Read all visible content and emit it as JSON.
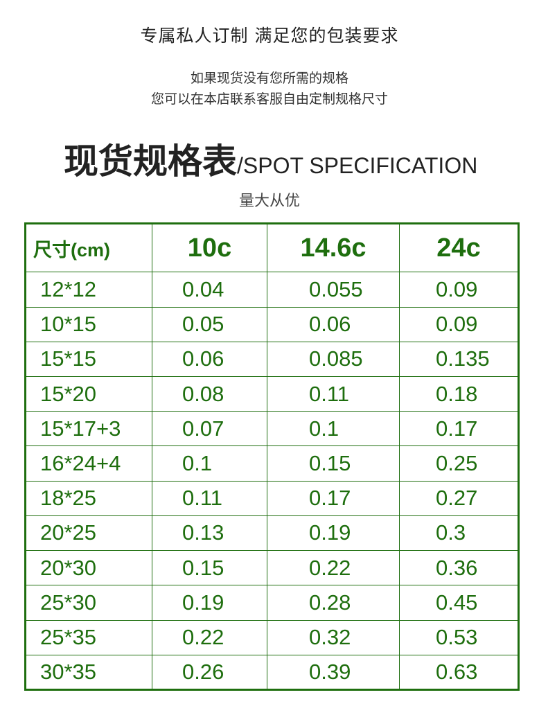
{
  "header": {
    "tagline": "专属私人订制  满足您的包装要求",
    "note_line1": "如果现货没有您所需的规格",
    "note_line2": "您可以在本店联系客服自由定制规格尺寸",
    "title_cn": "现货规格表",
    "title_en": "/SPOT SPECIFICATION",
    "subtitle": "量大从优"
  },
  "table": {
    "columns": [
      "尺寸(cm)",
      "10c",
      "14.6c",
      "24c"
    ],
    "rows": [
      [
        "12*12",
        "0.04",
        "0.055",
        "0.09"
      ],
      [
        "10*15",
        "0.05",
        "0.06",
        "0.09"
      ],
      [
        "15*15",
        "0.06",
        "0.085",
        "0.135"
      ],
      [
        "15*20",
        "0.08",
        "0.11",
        "0.18"
      ],
      [
        "15*17+3",
        "0.07",
        "0.1",
        "0.17"
      ],
      [
        "16*24+4",
        "0.1",
        "0.15",
        "0.25"
      ],
      [
        "18*25",
        "0.11",
        "0.17",
        "0.27"
      ],
      [
        "20*25",
        "0.13",
        "0.19",
        "0.3"
      ],
      [
        "20*30",
        "0.15",
        "0.22",
        "0.36"
      ],
      [
        "25*30",
        "0.19",
        "0.28",
        "0.45"
      ],
      [
        "25*35",
        "0.22",
        "0.32",
        "0.53"
      ],
      [
        "30*35",
        "0.26",
        "0.39",
        "0.63"
      ]
    ]
  },
  "colors": {
    "accent": "#1e6e0e",
    "text": "#222222"
  }
}
